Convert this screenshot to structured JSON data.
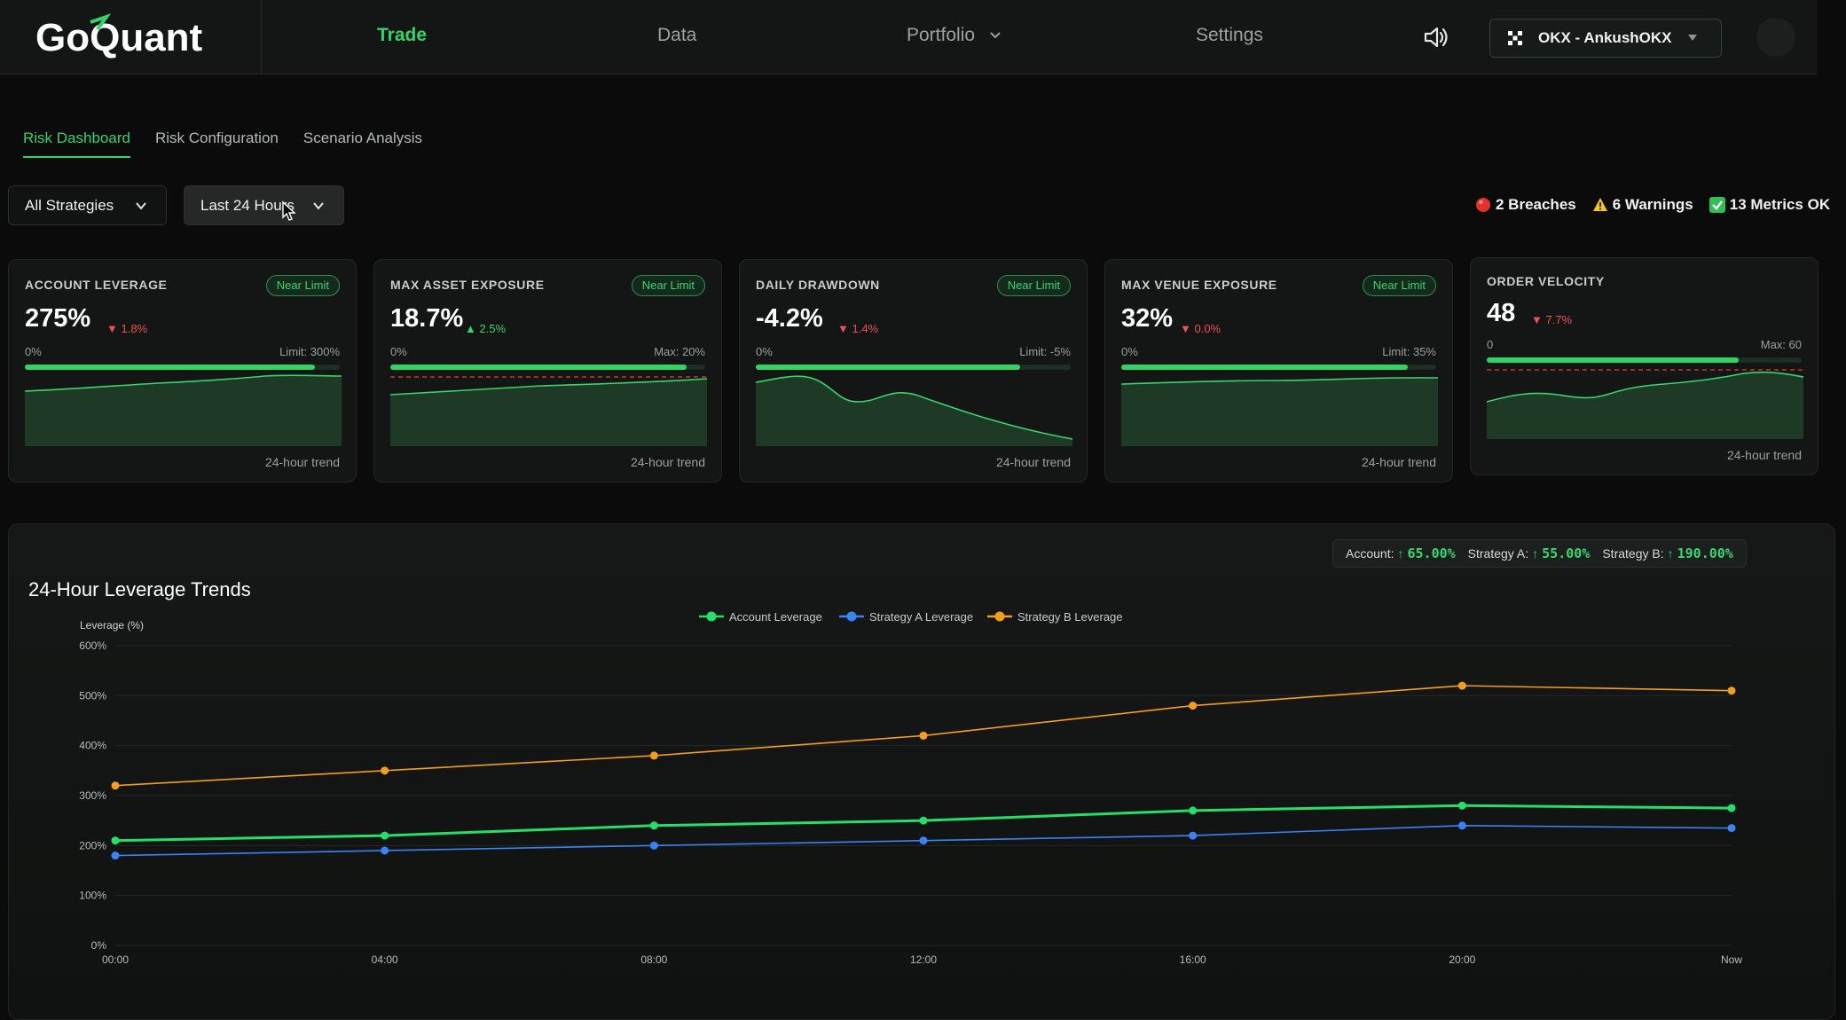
{
  "app": {
    "logo_text": "GoQuant",
    "brand_color": "#34d36a"
  },
  "nav": {
    "items": [
      {
        "label": "Trade",
        "active": true
      },
      {
        "label": "Data",
        "active": false
      },
      {
        "label": "Portfolio",
        "active": false,
        "has_dropdown": true
      },
      {
        "label": "Settings",
        "active": false
      }
    ],
    "sound_icon": "speaker-icon",
    "account_label": "OKX - AnkushOKX"
  },
  "tabs": [
    {
      "label": "Risk Dashboard",
      "active": true
    },
    {
      "label": "Risk Configuration",
      "active": false
    },
    {
      "label": "Scenario Analysis",
      "active": false
    }
  ],
  "filters": {
    "strategy": "All Strategies",
    "time_range": "Last 24 Hours"
  },
  "status": {
    "breaches": "2 Breaches",
    "warnings": "6 Warnings",
    "ok": "13 Metrics OK"
  },
  "cards": [
    {
      "title": "ACCOUNT LEVERAGE",
      "badge": "Near Limit",
      "value": "275%",
      "change": "1.8%",
      "direction": "down",
      "min_label": "0%",
      "limit_label": "Limit: 300%",
      "fill": 0.92,
      "threshold": null,
      "footer": "24-hour trend",
      "trend": "flat-up"
    },
    {
      "title": "MAX ASSET EXPOSURE",
      "badge": "Near Limit",
      "value": "18.7%",
      "change": "2.5%",
      "direction": "up",
      "min_label": "0%",
      "limit_label": "Max: 20%",
      "fill": 0.94,
      "threshold": true,
      "footer": "24-hour trend",
      "trend": "flat-up"
    },
    {
      "title": "DAILY DRAWDOWN",
      "badge": "Near Limit",
      "value": "-4.2%",
      "change": "1.4%",
      "direction": "down",
      "min_label": "0%",
      "limit_label": "Limit: -5%",
      "fill": 0.84,
      "threshold": null,
      "footer": "24-hour trend",
      "trend": "drop"
    },
    {
      "title": "MAX VENUE EXPOSURE",
      "badge": "Near Limit",
      "value": "32%",
      "change": "0.0%",
      "direction": "down",
      "min_label": "0%",
      "limit_label": "Limit: 35%",
      "fill": 0.91,
      "threshold": null,
      "footer": "24-hour trend",
      "trend": "flat-up"
    },
    {
      "title": "ORDER VELOCITY",
      "badge": "",
      "value": "48",
      "change": "7.7%",
      "direction": "down",
      "min_label": "0",
      "limit_label": "Max: 60",
      "fill": 0.8,
      "threshold": true,
      "footer": "24-hour trend",
      "trend": "wave"
    }
  ],
  "readout": {
    "account_label": "Account:",
    "account_value": "65.00%",
    "strategy_a_label": "Strategy A:",
    "strategy_a_value": "55.00%",
    "strategy_b_label": "Strategy B:",
    "strategy_b_value": "190.00%"
  },
  "chart_data": {
    "type": "line",
    "title": "24-Hour Leverage Trends",
    "ylabel": "Leverage (%)",
    "xlabel": "",
    "x": [
      "00:00",
      "04:00",
      "08:00",
      "12:00",
      "16:00",
      "20:00",
      "Now"
    ],
    "ylim": [
      0,
      600
    ],
    "yticks": [
      "0%",
      "100%",
      "200%",
      "300%",
      "400%",
      "500%",
      "600%"
    ],
    "grid": true,
    "legend": "top-center",
    "series": [
      {
        "name": "Account Leverage",
        "color": "#22e06a",
        "values": [
          210,
          220,
          240,
          250,
          270,
          280,
          275
        ]
      },
      {
        "name": "Strategy A Leverage",
        "color": "#3b82f6",
        "values": [
          180,
          190,
          200,
          210,
          220,
          240,
          235
        ]
      },
      {
        "name": "Strategy B Leverage",
        "color": "#f59e1b",
        "values": [
          320,
          350,
          380,
          420,
          480,
          520,
          510
        ]
      }
    ]
  }
}
